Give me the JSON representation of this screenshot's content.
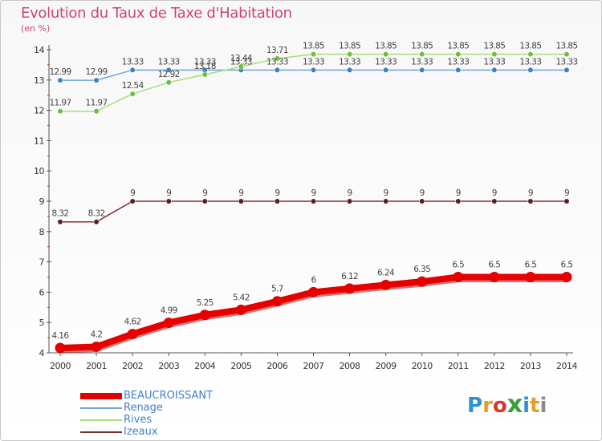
{
  "title": "Evolution du Taux de Taxe d'Habitation",
  "subtitle": "(en %)",
  "logo": {
    "text": "Proxiti",
    "letters": [
      "P",
      "r",
      "o",
      "x",
      "i",
      "t",
      "i"
    ],
    "colors": [
      "#2e8fd6",
      "#e89b26",
      "#d9362b",
      "#3b9e3b",
      "#2e8fd6",
      "#e89b26",
      "#8a8a8a"
    ]
  },
  "colors": {
    "title": "#cc4477",
    "axis": "#555555",
    "grid_tick": "#cc3344",
    "value_label": "#444444"
  },
  "chart_data": {
    "type": "line",
    "title": "Evolution du Taux de Taxe d'Habitation",
    "ylabel": "(en %)",
    "xlabel": "",
    "x": [
      "2000",
      "2001",
      "2002",
      "2003",
      "2004",
      "2005",
      "2006",
      "2007",
      "2008",
      "2009",
      "2010",
      "2011",
      "2012",
      "2013",
      "2014"
    ],
    "ylim": [
      4,
      14
    ],
    "yticks": [
      "4",
      "5",
      "6",
      "7",
      "8",
      "9",
      "10",
      "11",
      "12",
      "13",
      "14"
    ],
    "legend_position": "bottom-left",
    "series": [
      {
        "name": "BEAUCROISSANT",
        "color": "#e60000",
        "values": [
          4.16,
          4.2,
          4.62,
          4.99,
          5.25,
          5.42,
          5.7,
          6,
          6.12,
          6.24,
          6.35,
          6.5,
          6.5,
          6.5,
          6.5
        ],
        "labels": [
          "4.16",
          "4.2",
          "4.62",
          "4.99",
          "5.25",
          "5.42",
          "5.7",
          "6",
          "6.12",
          "6.24",
          "6.35",
          "6.5",
          "6.5",
          "6.5",
          "6.5"
        ],
        "thick": true
      },
      {
        "name": "Renage",
        "color": "#6ea6dc",
        "point_color": "#3f7fc0",
        "values": [
          12.99,
          12.99,
          13.33,
          13.33,
          13.33,
          13.33,
          13.33,
          13.33,
          13.33,
          13.33,
          13.33,
          13.33,
          13.33,
          13.33,
          13.33
        ],
        "labels": [
          "12.99",
          "12.99",
          "13.33",
          "13.33",
          "13.33",
          "13.33",
          "13.33",
          "13.33",
          "13.33",
          "13.33",
          "13.33",
          "13.33",
          "13.33",
          "13.33",
          "13.33"
        ]
      },
      {
        "name": "Rives",
        "color": "#a8dc7e",
        "point_color": "#6cbf3a",
        "values": [
          11.97,
          11.97,
          12.54,
          12.92,
          13.18,
          13.44,
          13.71,
          13.85,
          13.85,
          13.85,
          13.85,
          13.85,
          13.85,
          13.85,
          13.85
        ],
        "labels": [
          "11.97",
          "11.97",
          "12.54",
          "12.92",
          "13.18",
          "13.44",
          "13.71",
          "13.85",
          "13.85",
          "13.85",
          "13.85",
          "13.85",
          "13.85",
          "13.85",
          "13.85"
        ]
      },
      {
        "name": "Izeaux",
        "color": "#7a3030",
        "point_color": "#5c1e1e",
        "values": [
          8.32,
          8.32,
          9,
          9,
          9,
          9,
          9,
          9,
          9,
          9,
          9,
          9,
          9,
          9,
          9
        ],
        "labels": [
          "8.32",
          "8.32",
          "9",
          "9",
          "9",
          "9",
          "9",
          "9",
          "9",
          "9",
          "9",
          "9",
          "9",
          "9",
          "9"
        ]
      }
    ]
  }
}
